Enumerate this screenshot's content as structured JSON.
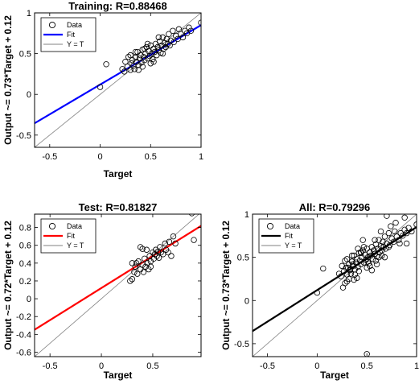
{
  "chart_data": [
    {
      "id": "training",
      "type": "scatter",
      "title": "Training: R=0.88468",
      "xlabel": "Target",
      "ylabel": "Output ~= 0.73*Target + 0.12",
      "xlim": [
        -0.65,
        1.0
      ],
      "ylim": [
        -0.65,
        1.0
      ],
      "xticks": [
        "-0.5",
        "0",
        "0.5",
        "1"
      ],
      "yticks": [
        "-0.5",
        "0",
        "0.5",
        "1"
      ],
      "xtick_values": [
        -0.5,
        0,
        0.5,
        1
      ],
      "ytick_values": [
        -0.5,
        0,
        0.5,
        1
      ],
      "fit": {
        "slope": 0.73,
        "intercept": 0.12,
        "color": "#0000ff"
      },
      "legend": {
        "position": "top-left",
        "entries": [
          "Data",
          "Fit",
          "Y = T"
        ]
      },
      "points": [
        [
          0.0,
          0.09
        ],
        [
          0.06,
          0.37
        ],
        [
          0.22,
          0.31
        ],
        [
          0.24,
          0.28
        ],
        [
          0.25,
          0.4
        ],
        [
          0.27,
          0.34
        ],
        [
          0.28,
          0.46
        ],
        [
          0.3,
          0.3
        ],
        [
          0.31,
          0.38
        ],
        [
          0.32,
          0.42
        ],
        [
          0.33,
          0.35
        ],
        [
          0.34,
          0.31
        ],
        [
          0.35,
          0.45
        ],
        [
          0.36,
          0.4
        ],
        [
          0.37,
          0.52
        ],
        [
          0.38,
          0.36
        ],
        [
          0.39,
          0.44
        ],
        [
          0.4,
          0.48
        ],
        [
          0.41,
          0.39
        ],
        [
          0.42,
          0.55
        ],
        [
          0.43,
          0.46
        ],
        [
          0.44,
          0.42
        ],
        [
          0.45,
          0.5
        ],
        [
          0.46,
          0.58
        ],
        [
          0.47,
          0.44
        ],
        [
          0.48,
          0.53
        ],
        [
          0.49,
          0.47
        ],
        [
          0.5,
          0.6
        ],
        [
          0.51,
          0.5
        ],
        [
          0.52,
          0.43
        ],
        [
          0.53,
          0.56
        ],
        [
          0.54,
          0.52
        ],
        [
          0.55,
          0.62
        ],
        [
          0.56,
          0.48
        ],
        [
          0.57,
          0.58
        ],
        [
          0.58,
          0.54
        ],
        [
          0.59,
          0.65
        ],
        [
          0.6,
          0.51
        ],
        [
          0.61,
          0.6
        ],
        [
          0.62,
          0.7
        ],
        [
          0.63,
          0.56
        ],
        [
          0.64,
          0.63
        ],
        [
          0.65,
          0.58
        ],
        [
          0.66,
          0.68
        ],
        [
          0.67,
          0.62
        ],
        [
          0.68,
          0.74
        ],
        [
          0.69,
          0.6
        ],
        [
          0.7,
          0.66
        ],
        [
          0.72,
          0.78
        ],
        [
          0.73,
          0.64
        ],
        [
          0.75,
          0.72
        ],
        [
          0.77,
          0.68
        ],
        [
          0.78,
          0.8
        ],
        [
          0.8,
          0.74
        ],
        [
          0.82,
          0.7
        ],
        [
          0.84,
          0.78
        ],
        [
          0.86,
          0.75
        ],
        [
          0.88,
          0.82
        ],
        [
          0.9,
          0.78
        ],
        [
          1.0,
          0.88
        ],
        [
          0.35,
          0.52
        ],
        [
          0.42,
          0.34
        ],
        [
          0.47,
          0.62
        ],
        [
          0.53,
          0.4
        ],
        [
          0.58,
          0.7
        ],
        [
          0.44,
          0.56
        ],
        [
          0.38,
          0.3
        ],
        [
          0.5,
          0.38
        ],
        [
          0.62,
          0.5
        ],
        [
          0.3,
          0.48
        ]
      ]
    },
    {
      "id": "test",
      "type": "scatter",
      "title": "Test: R=0.81827",
      "xlabel": "Target",
      "ylabel": "Output ~= 0.72*Target + 0.12",
      "xlim": [
        -0.65,
        0.97
      ],
      "ylim": [
        -0.65,
        0.95
      ],
      "xticks": [
        "-0.5",
        "0",
        "0.5"
      ],
      "yticks": [
        "-0.6",
        "-0.4",
        "-0.2",
        "0",
        "0.2",
        "0.4",
        "0.6",
        "0.8"
      ],
      "xtick_values": [
        -0.5,
        0,
        0.5
      ],
      "ytick_values": [
        -0.6,
        -0.4,
        -0.2,
        0,
        0.2,
        0.4,
        0.6,
        0.8
      ],
      "fit": {
        "slope": 0.72,
        "intercept": 0.12,
        "color": "#ff0000"
      },
      "legend": {
        "position": "top-left",
        "entries": [
          "Data",
          "Fit",
          "Y = T"
        ]
      },
      "points": [
        [
          0.28,
          0.2
        ],
        [
          0.3,
          0.22
        ],
        [
          0.3,
          0.4
        ],
        [
          0.32,
          0.3
        ],
        [
          0.33,
          0.36
        ],
        [
          0.35,
          0.28
        ],
        [
          0.36,
          0.42
        ],
        [
          0.38,
          0.33
        ],
        [
          0.4,
          0.38
        ],
        [
          0.41,
          0.3
        ],
        [
          0.42,
          0.45
        ],
        [
          0.43,
          0.36
        ],
        [
          0.44,
          0.55
        ],
        [
          0.45,
          0.4
        ],
        [
          0.46,
          0.33
        ],
        [
          0.47,
          0.48
        ],
        [
          0.48,
          0.42
        ],
        [
          0.5,
          0.52
        ],
        [
          0.51,
          0.45
        ],
        [
          0.52,
          0.5
        ],
        [
          0.53,
          0.55
        ],
        [
          0.54,
          0.48
        ],
        [
          0.55,
          0.53
        ],
        [
          0.56,
          0.46
        ],
        [
          0.57,
          0.58
        ],
        [
          0.58,
          0.52
        ],
        [
          0.6,
          0.5
        ],
        [
          0.62,
          0.62
        ],
        [
          0.63,
          0.55
        ],
        [
          0.65,
          0.52
        ],
        [
          0.66,
          0.64
        ],
        [
          0.68,
          0.48
        ],
        [
          0.7,
          0.7
        ],
        [
          0.72,
          0.62
        ],
        [
          0.88,
          0.96
        ],
        [
          0.9,
          0.66
        ],
        [
          0.38,
          0.58
        ],
        [
          0.4,
          0.56
        ],
        [
          0.34,
          0.4
        ],
        [
          0.48,
          0.36
        ]
      ]
    },
    {
      "id": "all",
      "type": "scatter",
      "title": "All: R=0.79296",
      "xlabel": "Target",
      "ylabel": "Output ~= 0.73*Target + 0.12",
      "xlim": [
        -0.65,
        1.0
      ],
      "ylim": [
        -0.65,
        1.0
      ],
      "xticks": [
        "-0.5",
        "0",
        "0.5",
        "1"
      ],
      "yticks": [
        "-0.5",
        "0",
        "0.5",
        "1"
      ],
      "xtick_values": [
        -0.5,
        0,
        0.5,
        1
      ],
      "ytick_values": [
        -0.5,
        0,
        0.5,
        1
      ],
      "fit": {
        "slope": 0.73,
        "intercept": 0.12,
        "color": "#000000"
      },
      "legend": {
        "position": "top-left",
        "entries": [
          "Data",
          "Fit",
          "Y = T"
        ]
      },
      "points": [
        [
          0.0,
          0.09
        ],
        [
          0.06,
          0.37
        ],
        [
          0.5,
          -0.62
        ],
        [
          0.22,
          0.31
        ],
        [
          0.24,
          0.28
        ],
        [
          0.25,
          0.4
        ],
        [
          0.27,
          0.34
        ],
        [
          0.28,
          0.46
        ],
        [
          0.3,
          0.3
        ],
        [
          0.31,
          0.38
        ],
        [
          0.32,
          0.42
        ],
        [
          0.33,
          0.35
        ],
        [
          0.34,
          0.31
        ],
        [
          0.35,
          0.45
        ],
        [
          0.36,
          0.4
        ],
        [
          0.37,
          0.52
        ],
        [
          0.38,
          0.36
        ],
        [
          0.39,
          0.44
        ],
        [
          0.4,
          0.48
        ],
        [
          0.41,
          0.39
        ],
        [
          0.42,
          0.55
        ],
        [
          0.43,
          0.46
        ],
        [
          0.44,
          0.42
        ],
        [
          0.45,
          0.5
        ],
        [
          0.46,
          0.58
        ],
        [
          0.47,
          0.44
        ],
        [
          0.48,
          0.53
        ],
        [
          0.49,
          0.47
        ],
        [
          0.5,
          0.6
        ],
        [
          0.51,
          0.5
        ],
        [
          0.52,
          0.43
        ],
        [
          0.53,
          0.56
        ],
        [
          0.54,
          0.52
        ],
        [
          0.55,
          0.62
        ],
        [
          0.56,
          0.48
        ],
        [
          0.57,
          0.58
        ],
        [
          0.58,
          0.54
        ],
        [
          0.59,
          0.65
        ],
        [
          0.6,
          0.51
        ],
        [
          0.61,
          0.6
        ],
        [
          0.62,
          0.7
        ],
        [
          0.63,
          0.56
        ],
        [
          0.64,
          0.63
        ],
        [
          0.65,
          0.58
        ],
        [
          0.66,
          0.68
        ],
        [
          0.67,
          0.62
        ],
        [
          0.68,
          0.74
        ],
        [
          0.69,
          0.6
        ],
        [
          0.7,
          0.66
        ],
        [
          0.72,
          0.78
        ],
        [
          0.73,
          0.64
        ],
        [
          0.75,
          0.72
        ],
        [
          0.77,
          0.68
        ],
        [
          0.78,
          0.8
        ],
        [
          0.8,
          0.74
        ],
        [
          0.82,
          0.7
        ],
        [
          0.84,
          0.78
        ],
        [
          0.86,
          0.75
        ],
        [
          0.88,
          0.82
        ],
        [
          0.9,
          0.78
        ],
        [
          1.0,
          0.88
        ],
        [
          0.7,
          0.98
        ],
        [
          0.35,
          0.52
        ],
        [
          0.42,
          0.34
        ],
        [
          0.47,
          0.62
        ],
        [
          0.53,
          0.4
        ],
        [
          0.58,
          0.7
        ],
        [
          0.44,
          0.56
        ],
        [
          0.38,
          0.3
        ],
        [
          0.5,
          0.38
        ],
        [
          0.62,
          0.5
        ],
        [
          0.3,
          0.48
        ],
        [
          0.28,
          0.2
        ],
        [
          0.3,
          0.22
        ],
        [
          0.33,
          0.36
        ],
        [
          0.36,
          0.42
        ],
        [
          0.44,
          0.55
        ],
        [
          0.51,
          0.45
        ],
        [
          0.57,
          0.58
        ],
        [
          0.65,
          0.52
        ],
        [
          0.72,
          0.62
        ],
        [
          0.88,
          0.96
        ],
        [
          0.9,
          0.66
        ],
        [
          0.92,
          0.84
        ],
        [
          0.95,
          0.8
        ],
        [
          0.26,
          0.15
        ],
        [
          0.32,
          0.25
        ],
        [
          0.4,
          0.26
        ],
        [
          0.55,
          0.35
        ],
        [
          0.6,
          0.42
        ],
        [
          0.68,
          0.5
        ],
        [
          0.74,
          0.86
        ],
        [
          0.79,
          0.9
        ],
        [
          0.83,
          0.66
        ],
        [
          0.64,
          0.8
        ],
        [
          0.59,
          0.46
        ],
        [
          0.46,
          0.7
        ],
        [
          0.41,
          0.6
        ],
        [
          0.37,
          0.24
        ],
        [
          0.29,
          0.38
        ]
      ]
    }
  ]
}
